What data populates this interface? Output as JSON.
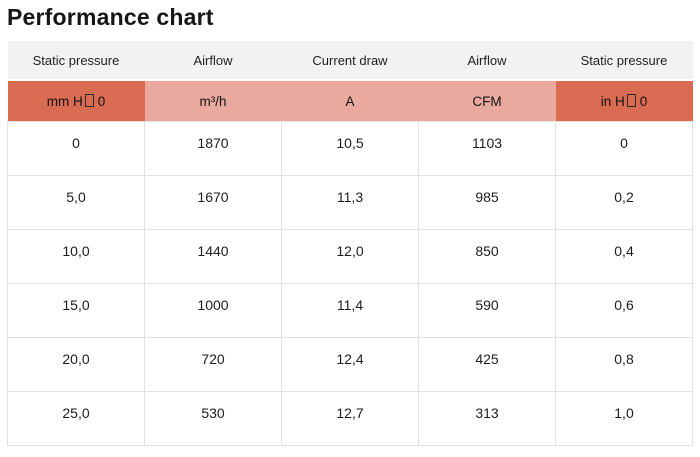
{
  "title": "Performance chart",
  "chart_data": {
    "type": "table",
    "title": "Performance chart",
    "columns": [
      "Static pressure",
      "Airflow",
      "Current draw",
      "Airflow",
      "Static pressure"
    ],
    "units": [
      {
        "pre": "mm H",
        "tofu": "missing-glyph",
        "post": "0"
      },
      {
        "text": "m³/h"
      },
      {
        "text": "A"
      },
      {
        "text": "CFM"
      },
      {
        "pre": "in H",
        "tofu": "missing-glyph",
        "post": "0"
      }
    ],
    "rows": [
      [
        "0",
        "1870",
        "10,5",
        "1103",
        "0"
      ],
      [
        "5,0",
        "1670",
        "11,3",
        "985",
        "0,2"
      ],
      [
        "10,0",
        "1440",
        "12,0",
        "850",
        "0,4"
      ],
      [
        "15,0",
        "1000",
        "11,4",
        "590",
        "0,6"
      ],
      [
        "20,0",
        "720",
        "12,4",
        "425",
        "0,8"
      ],
      [
        "25,0",
        "530",
        "12,7",
        "313",
        "1,0"
      ]
    ]
  },
  "colors": {
    "unit_accent": "#d96b52",
    "unit_light": "#e9a99f",
    "header_bg": "#f2f2f3",
    "row_border": "#e2e2e2",
    "text": "#1d1d1d"
  }
}
